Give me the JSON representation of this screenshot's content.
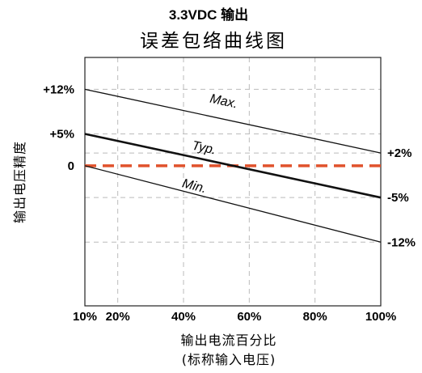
{
  "chart_data": {
    "type": "line",
    "title": "3.3VDC 输出",
    "subtitle": "误差包络曲线图",
    "xlabel": "输出电流百分比",
    "xlabel_sub": "(标称输入电压)",
    "ylabel": "输出电压精度",
    "xlim": [
      10,
      100
    ],
    "ylim": [
      -22,
      17
    ],
    "x_ticks": [
      {
        "value": 10,
        "label": "10%"
      },
      {
        "value": 20,
        "label": "20%"
      },
      {
        "value": 40,
        "label": "40%"
      },
      {
        "value": 60,
        "label": "60%"
      },
      {
        "value": 80,
        "label": "80%"
      },
      {
        "value": 100,
        "label": "100%"
      }
    ],
    "y_ticks_left": [
      {
        "value": 12,
        "label": "+12%"
      },
      {
        "value": 5,
        "label": "+5%"
      },
      {
        "value": 0,
        "label": "0"
      }
    ],
    "y_ticks_right": [
      {
        "value": 2,
        "label": "+2%"
      },
      {
        "value": -5,
        "label": "-5%"
      },
      {
        "value": -12,
        "label": "-12%"
      }
    ],
    "grid": true,
    "series": [
      {
        "name": "Max.",
        "x": [
          10,
          100
        ],
        "y": [
          12,
          2
        ],
        "color": "#111111",
        "width": 1.3,
        "label_x": 52,
        "label_y": 9.5
      },
      {
        "name": "Typ.",
        "x": [
          10,
          100
        ],
        "y": [
          5,
          -5
        ],
        "color": "#111111",
        "width": 2.6,
        "label_x": 46,
        "label_y": 2.2
      },
      {
        "name": "Min.",
        "x": [
          10,
          100
        ],
        "y": [
          0,
          -12
        ],
        "color": "#111111",
        "width": 1.3,
        "label_x": 43,
        "label_y": -3.8
      }
    ],
    "reference_line": {
      "y": 0,
      "color": "#e0522c",
      "dashed": true
    }
  }
}
